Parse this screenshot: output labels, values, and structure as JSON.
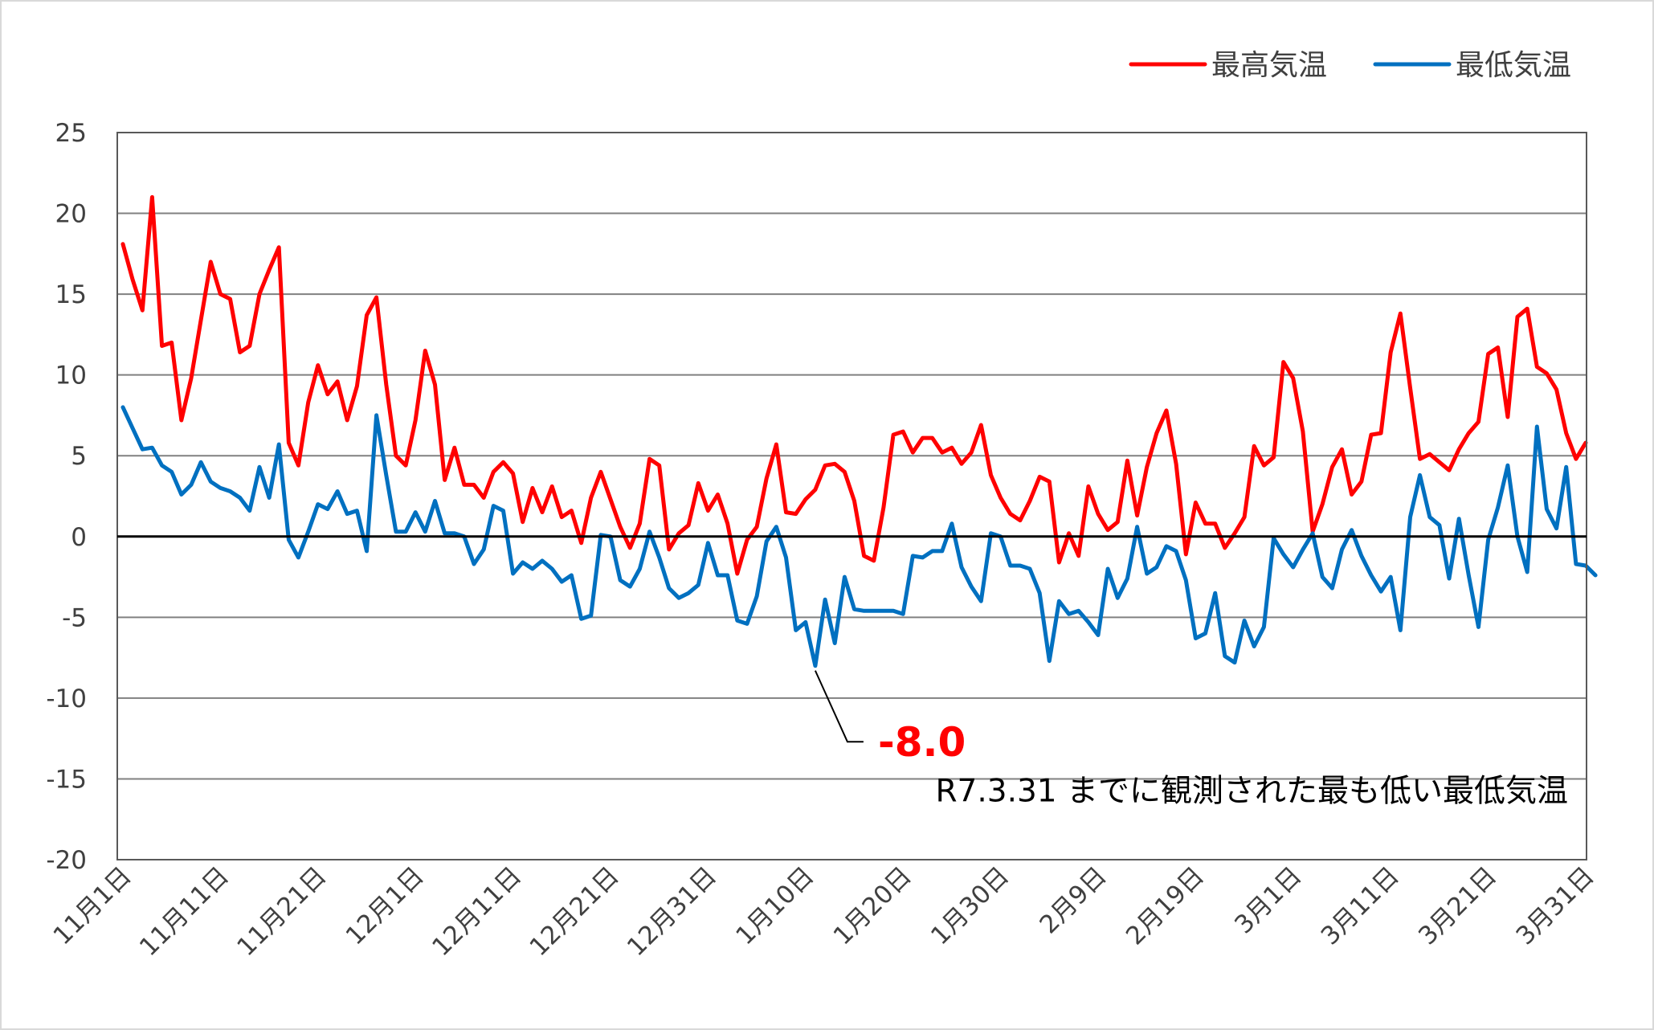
{
  "chart_data": {
    "type": "line",
    "title": "",
    "xlabel": "",
    "ylabel": "",
    "ylim": [
      -20,
      25
    ],
    "y_ticks": [
      "25",
      "20",
      "15",
      "10",
      "5",
      "0",
      "-5",
      "-10",
      "-15",
      "-20"
    ],
    "grid": "horizontal",
    "legend_position": "top-right",
    "x_tick_labels": [
      "11月1日",
      "11月11日",
      "11月21日",
      "12月1日",
      "12月11日",
      "12月21日",
      "12月31日",
      "1月10日",
      "1月20日",
      "1月30日",
      "2月9日",
      "2月19日",
      "3月1日",
      "3月11日",
      "3月21日",
      "3月31日"
    ],
    "x_tick_days": [
      0,
      10,
      20,
      30,
      40,
      50,
      60,
      70,
      80,
      90,
      100,
      110,
      120,
      130,
      140,
      150
    ],
    "series": [
      {
        "name": "最高気温",
        "color": "#ff0000",
        "values": [
          18.1,
          15.9,
          14,
          21,
          11.8,
          12,
          7.2,
          9.8,
          13.4,
          17,
          15,
          14.7,
          11.4,
          11.8,
          15,
          16.5,
          17.9,
          5.8,
          4.4,
          8.3,
          10.6,
          8.8,
          9.6,
          7.2,
          9.3,
          13.7,
          14.8,
          9.4,
          5,
          4.4,
          7.2,
          11.5,
          9.4,
          3.5,
          5.5,
          3.2,
          3.2,
          2.4,
          4,
          4.6,
          3.9,
          0.9,
          3,
          1.5,
          3.1,
          1.2,
          1.6,
          -0.4,
          2.4,
          4,
          2.3,
          0.6,
          -0.7,
          0.8,
          4.8,
          4.4,
          -0.8,
          0.2,
          0.7,
          3.3,
          1.6,
          2.6,
          0.8,
          -2.3,
          -0.2,
          0.6,
          3.6,
          5.7,
          1.5,
          1.4,
          2.3,
          2.9,
          4.4,
          4.5,
          4,
          2.2,
          -1.2,
          -1.5,
          1.8,
          6.3,
          6.5,
          5.2,
          6.1,
          6.1,
          5.2,
          5.5,
          4.5,
          5.2,
          6.9,
          3.8,
          2.4,
          1.4,
          1,
          2.2,
          3.7,
          3.4,
          -1.6,
          0.2,
          -1.2,
          3.1,
          1.4,
          0.4,
          0.9,
          4.7,
          1.3,
          4.3,
          6.4,
          7.8,
          4.5,
          -1.1,
          2.1,
          0.8,
          0.8,
          -0.7,
          0.2,
          1.2,
          5.6,
          4.4,
          4.9,
          10.8,
          9.8,
          6.5,
          0.3,
          2,
          4.3,
          5.4,
          2.6,
          3.4,
          6.3,
          6.4,
          11.4,
          13.8,
          9.2,
          4.8,
          5.1,
          4.6,
          4.1,
          5.4,
          6.4,
          7.1,
          11.3,
          11.7,
          7.4,
          13.6,
          14.1,
          10.5,
          10.1,
          9.1,
          6.4,
          4.8,
          5.8
        ]
      },
      {
        "name": "最低気温",
        "color": "#0070c0",
        "values": [
          8,
          6.7,
          5.4,
          5.5,
          4.4,
          4,
          2.6,
          3.2,
          4.6,
          3.4,
          3,
          2.8,
          2.4,
          1.6,
          4.3,
          2.4,
          5.7,
          -0.2,
          -1.3,
          0.3,
          2,
          1.7,
          2.8,
          1.4,
          1.6,
          -0.9,
          7.5,
          3.8,
          0.3,
          0.3,
          1.5,
          0.3,
          2.2,
          0.2,
          0.2,
          0,
          -1.7,
          -0.8,
          1.9,
          1.6,
          -2.3,
          -1.6,
          -2,
          -1.5,
          -2,
          -2.8,
          -2.4,
          -5.1,
          -4.9,
          0.1,
          0,
          -2.7,
          -3.1,
          -2,
          0.3,
          -1.3,
          -3.2,
          -3.8,
          -3.5,
          -3,
          -0.4,
          -2.4,
          -2.4,
          -5.2,
          -5.4,
          -3.7,
          -0.3,
          0.6,
          -1.3,
          -5.8,
          -5.3,
          -8,
          -3.9,
          -6.6,
          -2.5,
          -4.5,
          -4.6,
          -4.6,
          -4.6,
          -4.6,
          -4.8,
          -1.2,
          -1.3,
          -0.9,
          -0.9,
          0.8,
          -1.9,
          -3.1,
          -4,
          0.2,
          0,
          -1.8,
          -1.8,
          -2,
          -3.5,
          -7.7,
          -4,
          -4.8,
          -4.6,
          -5.3,
          -6.1,
          -2,
          -3.8,
          -2.6,
          0.6,
          -2.3,
          -1.9,
          -0.6,
          -0.9,
          -2.7,
          -6.3,
          -6,
          -3.5,
          -7.4,
          -7.8,
          -5.2,
          -6.8,
          -5.6,
          -0.1,
          -1.1,
          -1.9,
          -0.8,
          0.2,
          -2.5,
          -3.2,
          -0.8,
          0.4,
          -1.2,
          -2.4,
          -3.4,
          -2.5,
          -5.8,
          1.2,
          3.8,
          1.2,
          0.7,
          -2.6,
          1.1,
          -2.4,
          -5.6,
          -0.2,
          1.8,
          4.4,
          0,
          -2.2,
          6.8,
          1.7,
          0.5,
          4.3,
          -1.7,
          -1.8,
          -2.4
        ]
      }
    ],
    "annotation": {
      "value_label": "-8.0",
      "series_index": 1,
      "point_index": 71,
      "note": "R7.3.31 までに観測された最も低い最低気温"
    }
  }
}
